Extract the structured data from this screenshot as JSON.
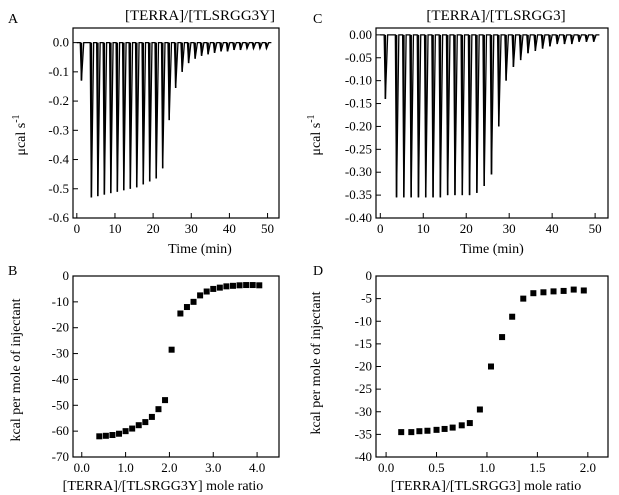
{
  "chart_data": [
    {
      "panel": "A",
      "type": "line",
      "title": "[TERRA]/[TLSRGG3Y]",
      "xlabel": "Time (min)",
      "ylabel": "μcal s⁻¹",
      "xlim": [
        -1,
        53
      ],
      "ylim": [
        -0.6,
        0.05
      ],
      "xticks": [
        0,
        10,
        20,
        30,
        40,
        50
      ],
      "xtick_labels": [
        "0",
        "10",
        "20",
        "30",
        "40",
        "50"
      ],
      "yticks": [
        0.0,
        -0.1,
        -0.2,
        -0.3,
        -0.4,
        -0.5,
        -0.6
      ],
      "ytick_labels": [
        "0.0",
        "-0.1",
        "-0.2",
        "-0.3",
        "-0.4",
        "-0.5",
        "-0.6"
      ],
      "baseline": 0.0,
      "injections": [
        {
          "t": 0.9,
          "peak": -0.13
        },
        {
          "t": 3.5,
          "peak": -0.53
        },
        {
          "t": 5.2,
          "peak": -0.525
        },
        {
          "t": 6.9,
          "peak": -0.52
        },
        {
          "t": 8.6,
          "peak": -0.515
        },
        {
          "t": 10.3,
          "peak": -0.51
        },
        {
          "t": 12.0,
          "peak": -0.505
        },
        {
          "t": 13.7,
          "peak": -0.5
        },
        {
          "t": 15.4,
          "peak": -0.495
        },
        {
          "t": 17.1,
          "peak": -0.485
        },
        {
          "t": 18.8,
          "peak": -0.475
        },
        {
          "t": 20.5,
          "peak": -0.465
        },
        {
          "t": 22.2,
          "peak": -0.43
        },
        {
          "t": 23.9,
          "peak": -0.265
        },
        {
          "t": 25.6,
          "peak": -0.155
        },
        {
          "t": 27.3,
          "peak": -0.1
        },
        {
          "t": 29.0,
          "peak": -0.07
        },
        {
          "t": 30.7,
          "peak": -0.055
        },
        {
          "t": 32.4,
          "peak": -0.045
        },
        {
          "t": 34.1,
          "peak": -0.04
        },
        {
          "t": 35.8,
          "peak": -0.035
        },
        {
          "t": 37.5,
          "peak": -0.03
        },
        {
          "t": 39.2,
          "peak": -0.03
        },
        {
          "t": 40.9,
          "peak": -0.025
        },
        {
          "t": 42.6,
          "peak": -0.025
        },
        {
          "t": 44.3,
          "peak": -0.02
        },
        {
          "t": 46.0,
          "peak": -0.02
        },
        {
          "t": 47.7,
          "peak": -0.02
        },
        {
          "t": 49.4,
          "peak": -0.02
        }
      ]
    },
    {
      "panel": "C",
      "type": "line",
      "title": "[TERRA]/[TLSRGG3]",
      "xlabel": "Time (min)",
      "ylabel": "μcal s⁻¹",
      "xlim": [
        -1,
        53
      ],
      "ylim": [
        -0.4,
        0.015
      ],
      "xticks": [
        0,
        10,
        20,
        30,
        40,
        50
      ],
      "xtick_labels": [
        "0",
        "10",
        "20",
        "30",
        "40",
        "50"
      ],
      "yticks": [
        0.0,
        -0.05,
        -0.1,
        -0.15,
        -0.2,
        -0.25,
        -0.3,
        -0.35,
        -0.4
      ],
      "ytick_labels": [
        "0.00",
        "-0.05",
        "-0.10",
        "-0.15",
        "-0.20",
        "-0.25",
        "-0.30",
        "-0.35",
        "-0.40"
      ],
      "baseline": 0.0,
      "injections": [
        {
          "t": 0.9,
          "peak": -0.14
        },
        {
          "t": 3.5,
          "peak": -0.355
        },
        {
          "t": 5.2,
          "peak": -0.355
        },
        {
          "t": 6.9,
          "peak": -0.355
        },
        {
          "t": 8.6,
          "peak": -0.355
        },
        {
          "t": 10.3,
          "peak": -0.355
        },
        {
          "t": 12.0,
          "peak": -0.355
        },
        {
          "t": 13.7,
          "peak": -0.355
        },
        {
          "t": 15.4,
          "peak": -0.35
        },
        {
          "t": 17.1,
          "peak": -0.35
        },
        {
          "t": 18.8,
          "peak": -0.35
        },
        {
          "t": 20.5,
          "peak": -0.35
        },
        {
          "t": 22.2,
          "peak": -0.345
        },
        {
          "t": 23.9,
          "peak": -0.33
        },
        {
          "t": 25.6,
          "peak": -0.305
        },
        {
          "t": 27.3,
          "peak": -0.2
        },
        {
          "t": 29.0,
          "peak": -0.1
        },
        {
          "t": 30.7,
          "peak": -0.07
        },
        {
          "t": 32.4,
          "peak": -0.055
        },
        {
          "t": 34.1,
          "peak": -0.04
        },
        {
          "t": 35.8,
          "peak": -0.035
        },
        {
          "t": 37.5,
          "peak": -0.03
        },
        {
          "t": 39.2,
          "peak": -0.025
        },
        {
          "t": 40.9,
          "peak": -0.02
        },
        {
          "t": 42.6,
          "peak": -0.02
        },
        {
          "t": 44.3,
          "peak": -0.02
        },
        {
          "t": 46.0,
          "peak": -0.015
        },
        {
          "t": 47.7,
          "peak": -0.015
        },
        {
          "t": 49.4,
          "peak": -0.015
        }
      ]
    },
    {
      "panel": "B",
      "type": "scatter",
      "title": "",
      "xlabel": "[TERRA]/[TLSRGG3Y] mole ratio",
      "ylabel": "kcal per mole of injectant",
      "xlim": [
        -0.2,
        4.5
      ],
      "ylim": [
        -70,
        0
      ],
      "xticks": [
        0,
        1,
        2,
        3,
        4
      ],
      "xtick_labels": [
        "0.0",
        "1.0",
        "2.0",
        "3.0",
        "4.0"
      ],
      "yticks": [
        0,
        -10,
        -20,
        -30,
        -40,
        -50,
        -60,
        -70
      ],
      "ytick_labels": [
        "0",
        "-10",
        "-20",
        "-30",
        "-40",
        "-50",
        "-60",
        "-70"
      ],
      "x": [
        0.4,
        0.55,
        0.7,
        0.85,
        1.0,
        1.15,
        1.3,
        1.45,
        1.6,
        1.75,
        1.9,
        2.05,
        2.25,
        2.4,
        2.55,
        2.7,
        2.85,
        3.0,
        3.15,
        3.3,
        3.45,
        3.6,
        3.75,
        3.9,
        4.05
      ],
      "y": [
        -62,
        -61.8,
        -61.5,
        -61,
        -60,
        -59,
        -57.7,
        -56.5,
        -54.5,
        -51.5,
        -48,
        -28.5,
        -14.5,
        -12,
        -10,
        -7.5,
        -6,
        -5,
        -4.5,
        -4,
        -3.8,
        -3.6,
        -3.5,
        -3.5,
        -3.6
      ]
    },
    {
      "panel": "D",
      "type": "scatter",
      "title": "",
      "xlabel": "[TERRA]/[TLSRGG3] mole ratio",
      "ylabel": "kcal per mole of injectant",
      "xlim": [
        -0.1,
        2.2
      ],
      "ylim": [
        -40,
        0
      ],
      "xticks": [
        0,
        0.5,
        1,
        1.5,
        2
      ],
      "xtick_labels": [
        "0.0",
        "0.5",
        "1.0",
        "1.5",
        "2.0"
      ],
      "yticks": [
        0,
        -5,
        -10,
        -15,
        -20,
        -25,
        -30,
        -35,
        -40
      ],
      "ytick_labels": [
        "0",
        "-5",
        "-10",
        "-15",
        "-20",
        "-25",
        "-30",
        "-35",
        "-40"
      ],
      "x": [
        0.15,
        0.25,
        0.33,
        0.41,
        0.5,
        0.58,
        0.66,
        0.75,
        0.83,
        0.93,
        1.04,
        1.15,
        1.25,
        1.36,
        1.46,
        1.56,
        1.66,
        1.76,
        1.86,
        1.96
      ],
      "y": [
        -34.5,
        -34.5,
        -34.3,
        -34.2,
        -34,
        -33.8,
        -33.5,
        -33,
        -32.5,
        -29.5,
        -20,
        -13.5,
        -9,
        -5,
        -3.8,
        -3.6,
        -3.4,
        -3.3,
        -3,
        -3.2
      ]
    }
  ]
}
